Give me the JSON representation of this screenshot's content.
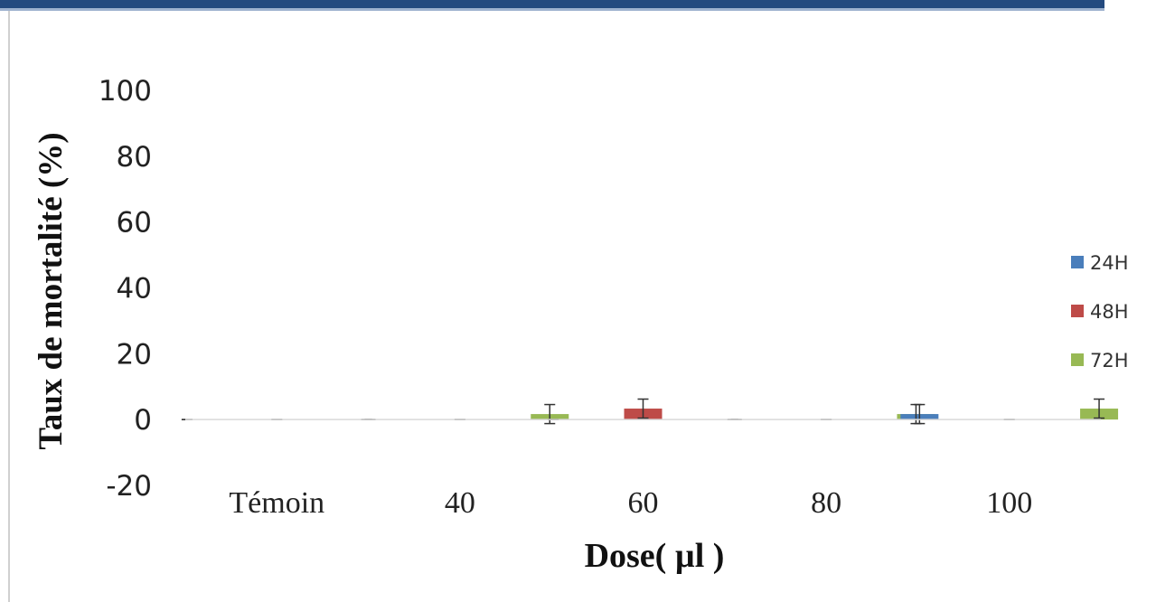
{
  "chart_data": {
    "type": "bar",
    "title": "",
    "xlabel": "Dose( µl )",
    "ylabel": "Taux de mortalité (%)",
    "categories": [
      "Témoin",
      "40",
      "60",
      "80",
      "100"
    ],
    "ylim": [
      -20,
      100
    ],
    "yticks": [
      -20,
      0,
      20,
      40,
      60,
      80,
      100
    ],
    "grid": false,
    "legend": "right",
    "series": [
      {
        "name": "24H",
        "color": "#4a7ebb",
        "values": [
          0,
          0,
          0,
          0,
          1.67
        ],
        "errors": [
          0,
          0,
          0,
          0,
          2.89
        ]
      },
      {
        "name": "48H",
        "color": "#be4b48",
        "values": [
          0,
          0,
          3.33,
          0,
          0
        ],
        "errors": [
          0,
          0,
          2.89,
          0,
          0
        ]
      },
      {
        "name": "72H",
        "color": "#98b954",
        "values": [
          0,
          1.67,
          0,
          1.67,
          3.33
        ],
        "errors": [
          0,
          2.89,
          0,
          2.89,
          2.89
        ]
      }
    ]
  }
}
